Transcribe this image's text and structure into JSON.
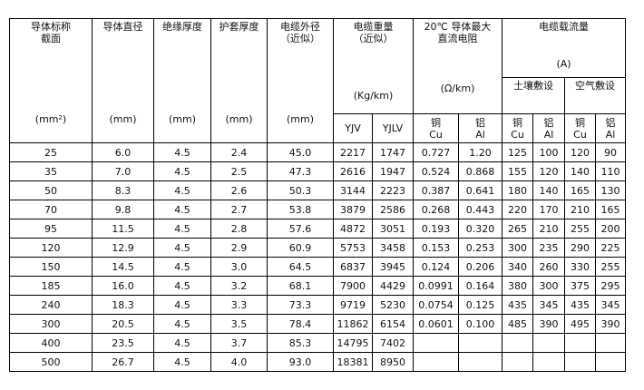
{
  "header": {
    "section": "导体标称\n截面",
    "section_unit": "(mm²)",
    "diameter": "导体直径",
    "diameter_unit": "(mm)",
    "insulation": "绝缘厚度",
    "insulation_unit": "(mm)",
    "sheath": "护套厚度",
    "sheath_unit": "(mm)",
    "outer": "电缆外径\n（近似）",
    "outer_unit": "(mm)",
    "weight": "电缆重量\n（近似）",
    "weight_unit": "(Kg/km)",
    "yjv": "YJV",
    "yjlv": "YJLV",
    "resistance": "20℃ 导体最大\n直流电阻",
    "resistance_unit": "(Ω/km)",
    "cu": "铜\nCu",
    "al": "铝\nAl",
    "current": "电缆载流量",
    "current_unit": "(A)",
    "soil": "土壤敷设",
    "air": "空气敷设"
  },
  "rows": [
    [
      "25",
      "6.0",
      "4.5",
      "2.4",
      "45.0",
      "2217",
      "1747",
      "0.727",
      "1.20",
      "125",
      "100",
      "120",
      "90"
    ],
    [
      "35",
      "7.0",
      "4.5",
      "2.5",
      "47.3",
      "2616",
      "1947",
      "0.524",
      "0.868",
      "155",
      "120",
      "140",
      "110"
    ],
    [
      "50",
      "8.3",
      "4.5",
      "2.6",
      "50.3",
      "3144",
      "2223",
      "0.387",
      "0.641",
      "180",
      "140",
      "165",
      "130"
    ],
    [
      "70",
      "9.8",
      "4.5",
      "2.7",
      "53.8",
      "3879",
      "2586",
      "0.268",
      "0.443",
      "220",
      "170",
      "210",
      "165"
    ],
    [
      "95",
      "11.5",
      "4.5",
      "2.8",
      "57.6",
      "4872",
      "3051",
      "0.193",
      "0.320",
      "265",
      "210",
      "255",
      "200"
    ],
    [
      "120",
      "12.9",
      "4.5",
      "2.9",
      "60.9",
      "5753",
      "3458",
      "0.153",
      "0.253",
      "300",
      "235",
      "290",
      "225"
    ],
    [
      "150",
      "14.5",
      "4.5",
      "3.0",
      "64.5",
      "6837",
      "3945",
      "0.124",
      "0.206",
      "340",
      "260",
      "330",
      "255"
    ],
    [
      "185",
      "16.0",
      "4.5",
      "3.2",
      "68.1",
      "7900",
      "4429",
      "0.0991",
      "0.164",
      "380",
      "300",
      "375",
      "295"
    ],
    [
      "240",
      "18.3",
      "4.5",
      "3.3",
      "73.3",
      "9719",
      "5230",
      "0.0754",
      "0.125",
      "435",
      "345",
      "435",
      "345"
    ],
    [
      "300",
      "20.5",
      "4.5",
      "3.5",
      "78.4",
      "11862",
      "6154",
      "0.0601",
      "0.100",
      "485",
      "390",
      "495",
      "390"
    ],
    [
      "400",
      "23.5",
      "4.5",
      "3.7",
      "85.3",
      "14795",
      "7402",
      "",
      "",
      "",
      "",
      "",
      ""
    ],
    [
      "500",
      "26.7",
      "4.5",
      "4.0",
      "93.0",
      "18381",
      "8950",
      "",
      "",
      "",
      "",
      "",
      ""
    ]
  ]
}
